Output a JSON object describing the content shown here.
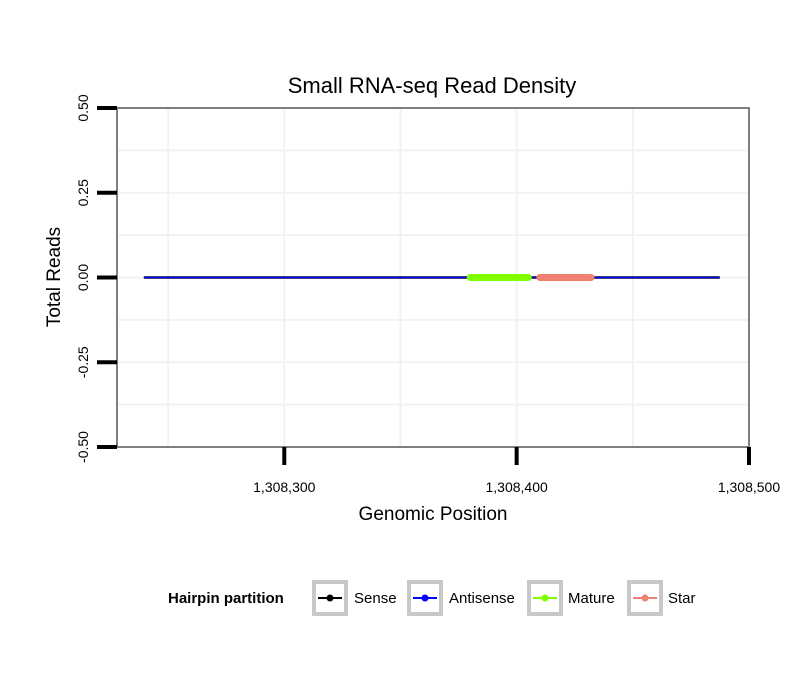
{
  "chart_data": {
    "type": "line",
    "title": "Small RNA-seq Read Density",
    "xlabel": "Genomic Position",
    "ylabel": "Total Reads",
    "xlim": [
      1308228,
      1308500
    ],
    "ylim": [
      -0.5,
      0.5
    ],
    "x_ticks": [
      1308300,
      1308400,
      1308500
    ],
    "x_tick_labels": [
      "1,308,300",
      "1,308,400",
      "1,308,500"
    ],
    "y_ticks": [
      -0.5,
      -0.25,
      0.0,
      0.25,
      0.5
    ],
    "y_tick_labels": [
      "-0.50",
      "-0.25",
      "0.00",
      "0.25",
      "0.50"
    ],
    "x_minor_gridlines": [
      1308250,
      1308350,
      1308450
    ],
    "y_minor_gridlines": [
      -0.375,
      -0.125,
      0.125,
      0.375
    ],
    "grid": true,
    "series": [
      {
        "name": "Sense",
        "color": "#000000",
        "x": [
          1308240,
          1308487
        ],
        "y": [
          0,
          0
        ]
      },
      {
        "name": "Antisense",
        "color": "#0000ff",
        "x": [
          1308240,
          1308487
        ],
        "y": [
          0,
          0
        ]
      },
      {
        "name": "Mature",
        "color": "#7fff00",
        "x": [
          1308380,
          1308405
        ],
        "y": [
          0,
          0
        ]
      },
      {
        "name": "Star",
        "color": "#f08070",
        "x": [
          1308410,
          1308432
        ],
        "y": [
          0,
          0
        ]
      }
    ],
    "legend": {
      "title": "Hairpin partition",
      "position": "bottom",
      "entries": [
        "Sense",
        "Antisense",
        "Mature",
        "Star"
      ]
    }
  }
}
